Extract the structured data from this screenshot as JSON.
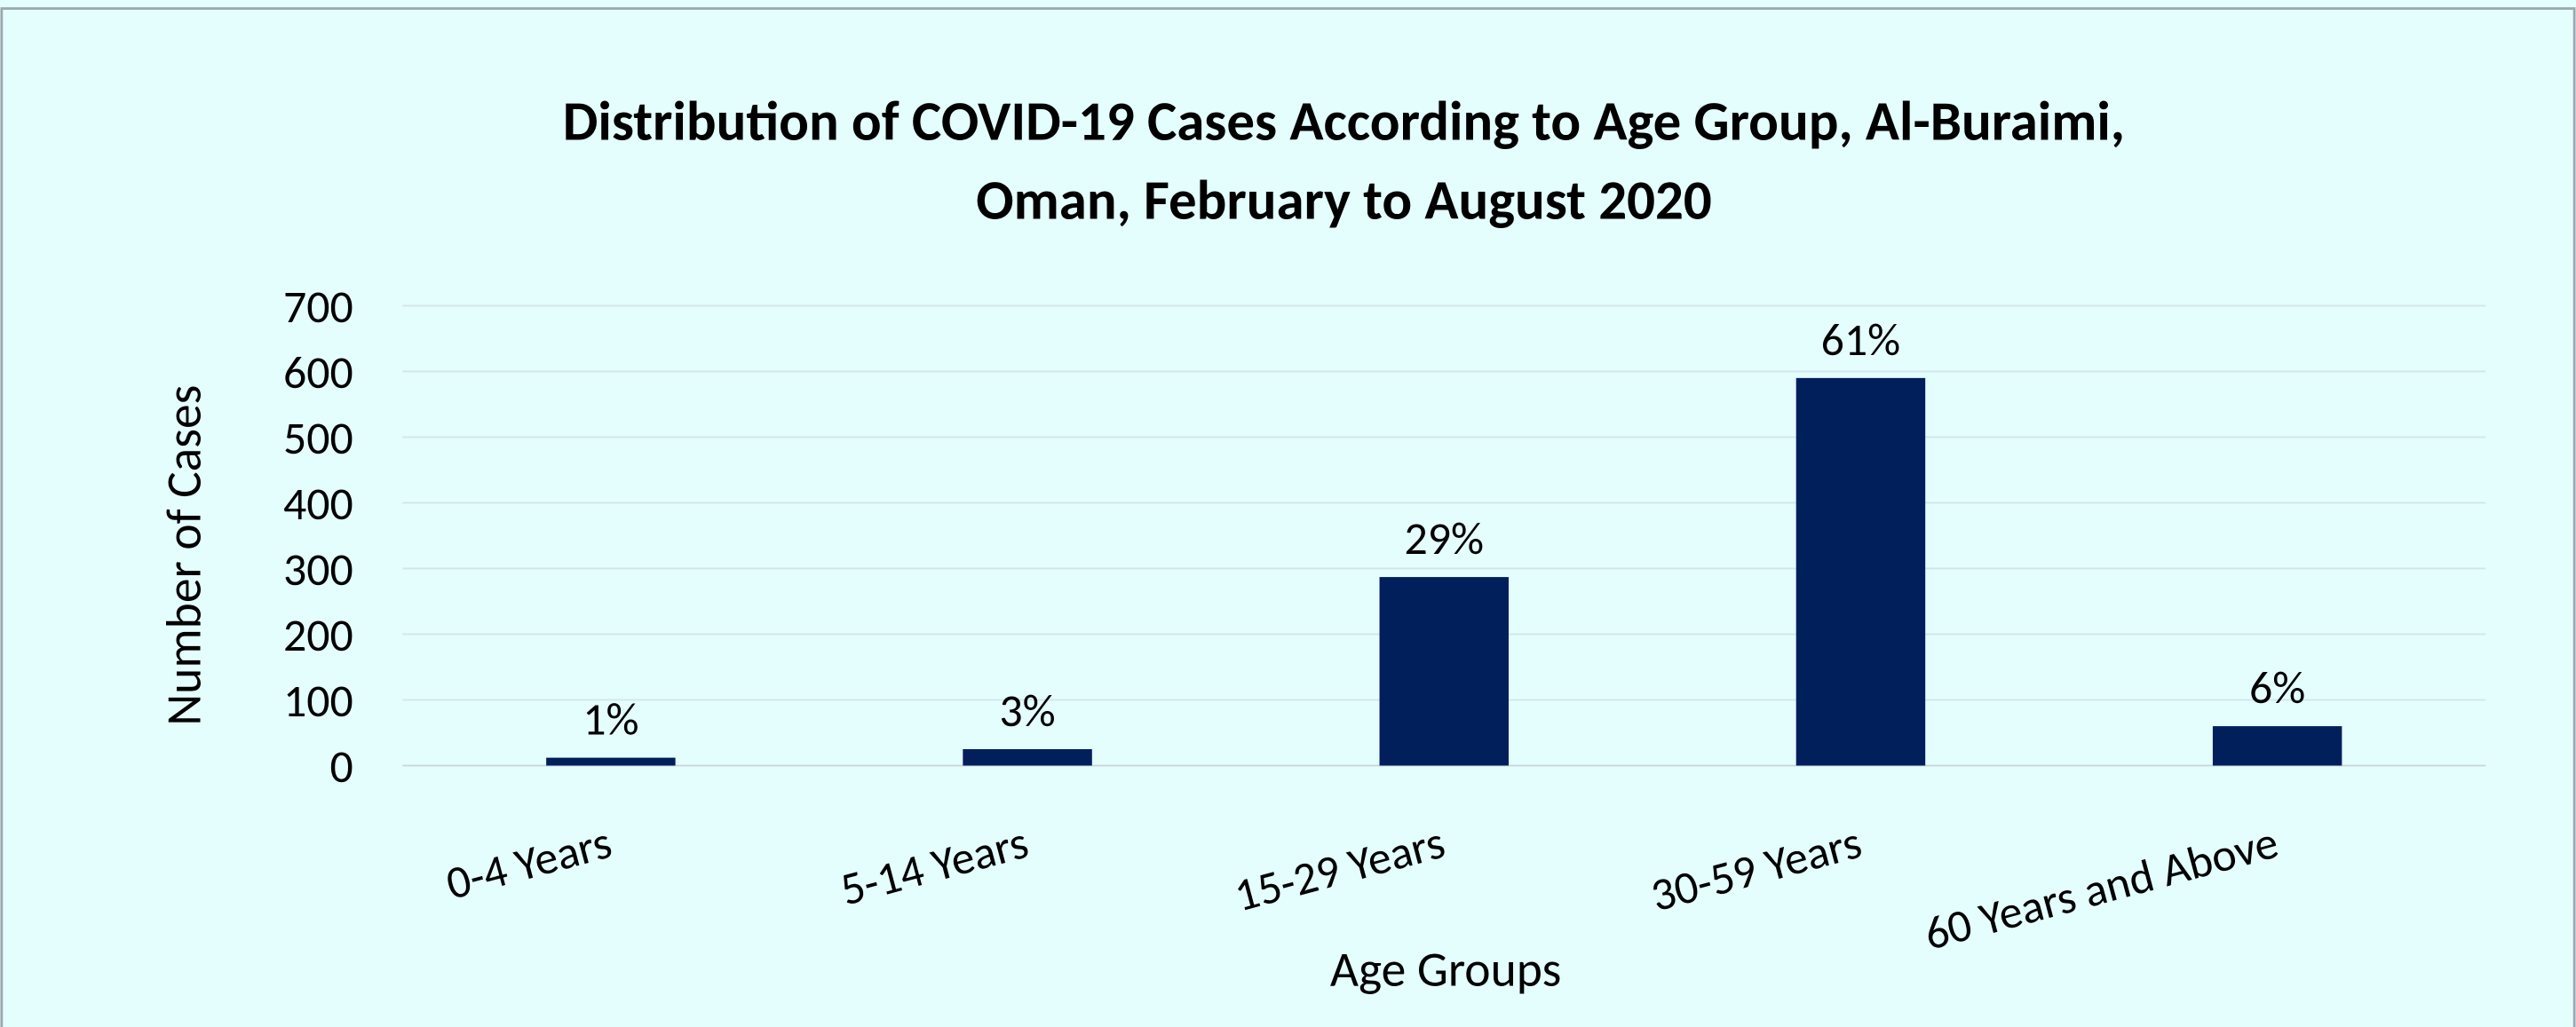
{
  "chart_data": {
    "type": "bar",
    "title": [
      "Distribution of COVID-19 Cases According to Age Group, Al-Buraimi,",
      "Oman, February to August 2020"
    ],
    "x_label": "Age Groups",
    "y_label": "Number of Cases",
    "categories": [
      "0-4 Years",
      "5-14 Years",
      "15-29 Years",
      "30-59 Years",
      "60 Years and Above"
    ],
    "values": [
      12,
      25,
      287,
      590,
      60
    ],
    "percent_labels": [
      "1%",
      "3%",
      "29%",
      "61%",
      "6%"
    ],
    "color": "#001f5b",
    "ylim": [
      0,
      700
    ],
    "yticks": [
      0,
      100,
      200,
      300,
      400,
      500,
      600,
      700
    ],
    "grid": true
  }
}
